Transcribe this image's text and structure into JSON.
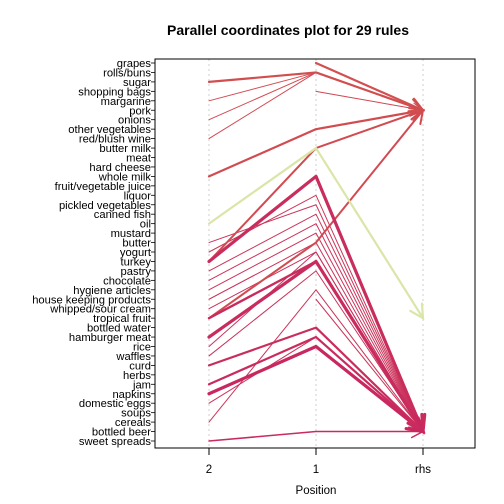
{
  "chart_data": {
    "type": "parallel-coordinates",
    "title": "Parallel coordinates plot for 29 rules",
    "xlabel": "Position",
    "axes": [
      "2",
      "1",
      "rhs"
    ],
    "items": [
      "grapes",
      "rolls/buns",
      "sugar",
      "shopping bags",
      "margarine",
      "pork",
      "onions",
      "other vegetables",
      "red/blush wine",
      "butter milk",
      "meat",
      "hard cheese",
      "whole milk",
      "fruit/vegetable juice",
      "liquor",
      "pickled vegetables",
      "canned fish",
      "oil",
      "mustard",
      "butter",
      "yogurt",
      "turkey",
      "pastry",
      "chocolate",
      "hygiene articles",
      "house keeping products",
      "whipped/sour cream",
      "tropical fruit",
      "bottled water",
      "hamburger meat",
      "rice",
      "waffles",
      "curd",
      "herbs",
      "jam",
      "napkins",
      "domestic eggs",
      "soups",
      "cereals",
      "bottled beer",
      "sweet spreads"
    ],
    "rules": [
      {
        "pos2": "sugar",
        "pos1": "rolls/buns",
        "rhs": "pork",
        "weight": 2.2,
        "shade": 0.05
      },
      {
        "pos2": "margarine",
        "pos1": "rolls/buns",
        "rhs": "pork",
        "weight": 1.0,
        "shade": 0.1
      },
      {
        "pos2": "onions",
        "pos1": "rolls/buns",
        "rhs": "pork",
        "weight": 1.0,
        "shade": 0.15
      },
      {
        "pos2": "red/blush wine",
        "pos1": "rolls/buns",
        "rhs": "pork",
        "weight": 1.0,
        "shade": 0.12
      },
      {
        "pos2": "",
        "pos1": "grapes",
        "rhs": "pork",
        "weight": 2.2,
        "shade": 0.0
      },
      {
        "pos2": "whole milk",
        "pos1": "other vegetables",
        "rhs": "pork",
        "weight": 2.2,
        "shade": 0.08
      },
      {
        "pos2": "turkey",
        "pos1": "butter milk",
        "rhs": "pork",
        "weight": 2.0,
        "shade": 0.1
      },
      {
        "pos2": "tropical fruit",
        "pos1": "butter",
        "rhs": "pork",
        "weight": 2.0,
        "shade": 0.12
      },
      {
        "pos2": "",
        "pos1": "shopping bags",
        "rhs": "pork",
        "weight": 1.0,
        "shade": 0.2
      },
      {
        "pos2": "oil",
        "pos1": "butter milk",
        "rhs": "tropical fruit",
        "weight": 2.2,
        "shade": 1.0
      },
      {
        "pos2": "turkey",
        "pos1": "whole milk",
        "rhs": "bottled beer",
        "weight": 3.2,
        "shade": 0.7
      },
      {
        "pos2": "yogurt",
        "pos1": "liquor",
        "rhs": "bottled beer",
        "weight": 1.0,
        "shade": 0.5
      },
      {
        "pos2": "butter",
        "pos1": "pickled vegetables",
        "rhs": "bottled beer",
        "weight": 1.0,
        "shade": 0.55
      },
      {
        "pos2": "pastry",
        "pos1": "canned fish",
        "rhs": "bottled beer",
        "weight": 1.0,
        "shade": 0.55
      },
      {
        "pos2": "chocolate",
        "pos1": "oil",
        "rhs": "bottled beer",
        "weight": 1.0,
        "shade": 0.6
      },
      {
        "pos2": "hygiene articles",
        "pos1": "mustard",
        "rhs": "bottled beer",
        "weight": 1.0,
        "shade": 0.6
      },
      {
        "pos2": "house keeping products",
        "pos1": "butter",
        "rhs": "bottled beer",
        "weight": 1.0,
        "shade": 0.6
      },
      {
        "pos2": "whipped/sour cream",
        "pos1": "yogurt",
        "rhs": "bottled beer",
        "weight": 1.0,
        "shade": 0.65
      },
      {
        "pos2": "tropical fruit",
        "pos1": "turkey",
        "rhs": "bottled beer",
        "weight": 2.4,
        "shade": 0.75
      },
      {
        "pos2": "hamburger meat",
        "pos1": "turkey",
        "rhs": "bottled beer",
        "weight": 3.2,
        "shade": 0.75
      },
      {
        "pos2": "rice",
        "pos1": "yogurt",
        "rhs": "bottled beer",
        "weight": 1.0,
        "shade": 0.6
      },
      {
        "pos2": "curd",
        "pos1": "bottled water",
        "rhs": "bottled beer",
        "weight": 2.2,
        "shade": 0.7
      },
      {
        "pos2": "waffles",
        "pos1": "pastry",
        "rhs": "bottled beer",
        "weight": 1.0,
        "shade": 0.6
      },
      {
        "pos2": "jam",
        "pos1": "hamburger meat",
        "rhs": "bottled beer",
        "weight": 2.2,
        "shade": 0.75
      },
      {
        "pos2": "napkins",
        "pos1": "rice",
        "rhs": "bottled beer",
        "weight": 3.2,
        "shade": 0.8
      },
      {
        "pos2": "domestic eggs",
        "pos1": "hamburger meat",
        "rhs": "bottled beer",
        "weight": 1.0,
        "shade": 0.6
      },
      {
        "pos2": "cereals",
        "pos1": "hygiene articles",
        "rhs": "bottled beer",
        "weight": 1.0,
        "shade": 0.55
      },
      {
        "pos2": "sweet spreads",
        "pos1": "bottled beer",
        "rhs": "bottled beer",
        "weight": 1.5,
        "shade": 0.75
      },
      {
        "pos2": "",
        "pos1": "house keeping products",
        "rhs": "bottled beer",
        "weight": 1.0,
        "shade": 0.55
      }
    ]
  }
}
